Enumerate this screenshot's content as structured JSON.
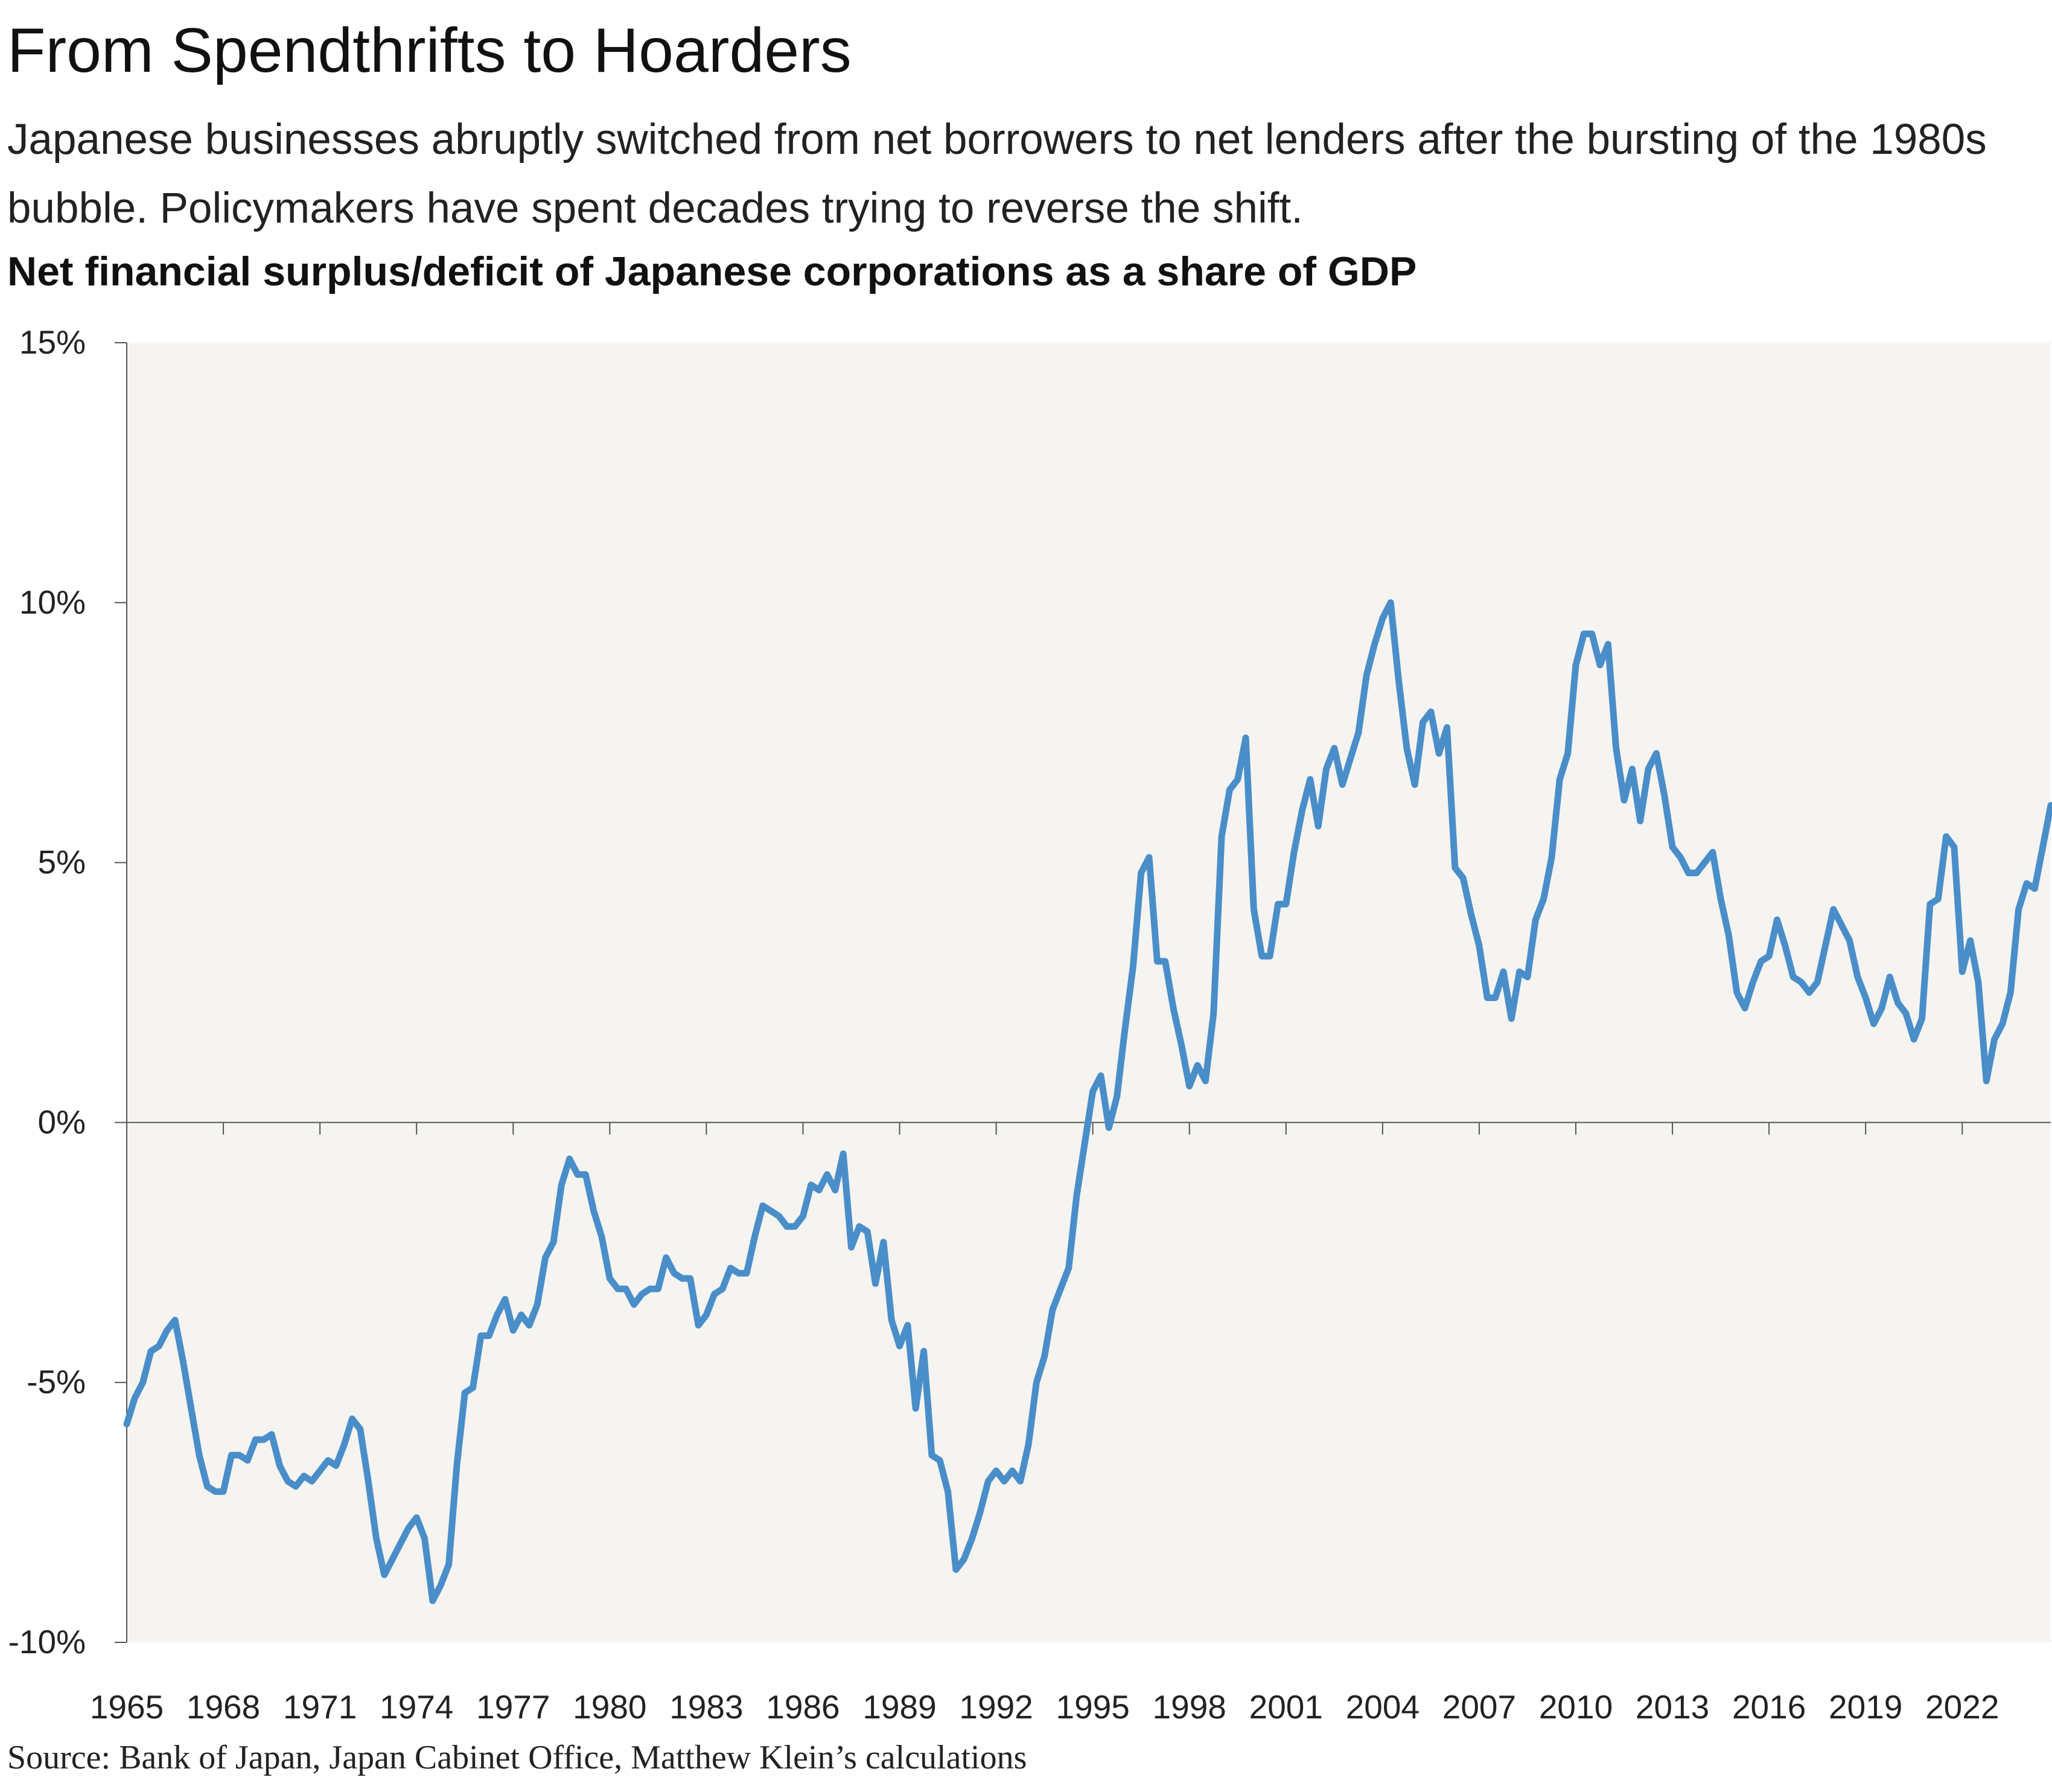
{
  "header": {
    "title": "From Spendthrifts to Hoarders",
    "subtitle": "Japanese businesses abruptly switched from net borrowers to net lenders after the bursting of the 1980s bubble. Policymakers have spent decades trying to reverse the shift."
  },
  "footer": {
    "source": "Source: Bank of Japan, Japan Cabinet Office, Matthew Klein’s calculations"
  },
  "colors": {
    "line": "#4a8ec9",
    "plot_background": "#f5f4f1",
    "axis": "#555555",
    "text": "#222222"
  },
  "chart_data": {
    "type": "line",
    "title": "Net financial surplus/deficit of Japanese corporations as a share of GDP",
    "xlabel": "",
    "ylabel": "",
    "xlim": [
      1965.0,
      2024.75
    ],
    "ylim": [
      -10,
      15
    ],
    "yticks": [
      15,
      10,
      5,
      0,
      -5,
      -10
    ],
    "ytick_labels": [
      "15%",
      "10%",
      "5%",
      "0%",
      "-5%",
      "-10%"
    ],
    "xticks": [
      1965,
      1968,
      1971,
      1974,
      1977,
      1980,
      1983,
      1986,
      1989,
      1992,
      1995,
      1998,
      2001,
      2004,
      2007,
      2010,
      2013,
      2016,
      2019,
      2022
    ],
    "xtick_labels": [
      "1965",
      "1968",
      "1971",
      "1974",
      "1977",
      "1980",
      "1983",
      "1986",
      "1989",
      "1992",
      "1995",
      "1998",
      "2001",
      "2004",
      "2007",
      "2010",
      "2013",
      "2016",
      "2019",
      "2022"
    ],
    "grid": false,
    "legend": "none",
    "series": [
      {
        "x": [
          1965.0,
          1965.25,
          1965.5,
          1965.75,
          1966.0,
          1966.25,
          1966.5,
          1966.75,
          1967.0,
          1967.25,
          1967.5,
          1967.75,
          1968.0,
          1968.25,
          1968.5,
          1968.75,
          1969.0,
          1969.25,
          1969.5,
          1969.75,
          1970.0,
          1970.25,
          1970.5,
          1970.75,
          1971.0,
          1971.25,
          1971.5,
          1971.75,
          1972.0,
          1972.25,
          1972.5,
          1972.75,
          1973.0,
          1973.25,
          1973.5,
          1973.75,
          1974.0,
          1974.25,
          1974.5,
          1974.75,
          1975.0,
          1975.25,
          1975.5,
          1975.75,
          1976.0,
          1976.25,
          1976.5,
          1976.75,
          1977.0,
          1977.25,
          1977.5,
          1977.75,
          1978.0,
          1978.25,
          1978.5,
          1978.75,
          1979.0,
          1979.25,
          1979.5,
          1979.75,
          1980.0,
          1980.25,
          1980.5,
          1980.75,
          1981.0,
          1981.25,
          1981.5,
          1981.75,
          1982.0,
          1982.25,
          1982.5,
          1982.75,
          1983.0,
          1983.25,
          1983.5,
          1983.75,
          1984.0,
          1984.25,
          1984.5,
          1984.75,
          1985.0,
          1985.25,
          1985.5,
          1985.75,
          1986.0,
          1986.25,
          1986.5,
          1986.75,
          1987.0,
          1987.25,
          1987.5,
          1987.75,
          1988.0,
          1988.25,
          1988.5,
          1988.75,
          1989.0,
          1989.25,
          1989.5,
          1989.75,
          1990.0,
          1990.25,
          1990.5,
          1990.75,
          1991.0,
          1991.25,
          1991.5,
          1991.75,
          1992.0,
          1992.25,
          1992.5,
          1992.75,
          1993.0,
          1993.25,
          1993.5,
          1993.75,
          1994.0,
          1994.25,
          1994.5,
          1994.75,
          1995.0,
          1995.25,
          1995.5,
          1995.75,
          1996.0,
          1996.25,
          1996.5,
          1996.75,
          1997.0,
          1997.25,
          1997.5,
          1997.75,
          1998.0,
          1998.25,
          1998.5,
          1998.75,
          1999.0,
          1999.25,
          1999.5,
          1999.75,
          2000.0,
          2000.25,
          2000.5,
          2000.75,
          2001.0,
          2001.25,
          2001.5,
          2001.75,
          2002.0,
          2002.25,
          2002.5,
          2002.75,
          2003.0,
          2003.25,
          2003.5,
          2003.75,
          2004.0,
          2004.25,
          2004.5,
          2004.75,
          2005.0,
          2005.25,
          2005.5,
          2005.75,
          2006.0,
          2006.25,
          2006.5,
          2006.75,
          2007.0,
          2007.25,
          2007.5,
          2007.75,
          2008.0,
          2008.25,
          2008.5,
          2008.75,
          2009.0,
          2009.25,
          2009.5,
          2009.75,
          2010.0,
          2010.25,
          2010.5,
          2010.75,
          2011.0,
          2011.25,
          2011.5,
          2011.75,
          2012.0,
          2012.25,
          2012.5,
          2012.75,
          2013.0,
          2013.25,
          2013.5,
          2013.75,
          2014.0,
          2014.25,
          2014.5,
          2014.75,
          2015.0,
          2015.25,
          2015.5,
          2015.75,
          2016.0,
          2016.25,
          2016.5,
          2016.75,
          2017.0,
          2017.25,
          2017.5,
          2017.75,
          2018.0,
          2018.25,
          2018.5,
          2018.75,
          2019.0,
          2019.25,
          2019.5,
          2019.75,
          2020.0,
          2020.25,
          2020.5,
          2020.75,
          2021.0,
          2021.25,
          2021.5,
          2021.75,
          2022.0,
          2022.25,
          2022.5,
          2022.75,
          2023.0,
          2023.25,
          2023.5,
          2023.75,
          2024.0,
          2024.25,
          2024.5,
          2024.75
        ],
        "values": [
          -5.8,
          -5.3,
          -5.0,
          -4.4,
          -4.3,
          -4.0,
          -3.8,
          -4.6,
          -5.5,
          -6.4,
          -7.0,
          -7.1,
          -7.1,
          -6.4,
          -6.4,
          -6.5,
          -6.1,
          -6.1,
          -6.0,
          -6.6,
          -6.9,
          -7.0,
          -6.8,
          -6.9,
          -6.7,
          -6.5,
          -6.6,
          -6.2,
          -5.7,
          -5.9,
          -6.9,
          -8.0,
          -8.7,
          -8.4,
          -8.1,
          -7.8,
          -7.6,
          -8.0,
          -9.2,
          -8.9,
          -8.5,
          -6.6,
          -5.2,
          -5.1,
          -4.1,
          -4.1,
          -3.7,
          -3.4,
          -4.0,
          -3.7,
          -3.9,
          -3.5,
          -2.6,
          -2.3,
          -1.2,
          -0.7,
          -1.0,
          -1.0,
          -1.7,
          -2.2,
          -3.0,
          -3.2,
          -3.2,
          -3.5,
          -3.3,
          -3.2,
          -3.2,
          -2.6,
          -2.9,
          -3.0,
          -3.0,
          -3.9,
          -3.7,
          -3.3,
          -3.2,
          -2.8,
          -2.9,
          -2.9,
          -2.2,
          -1.6,
          -1.7,
          -1.8,
          -2.0,
          -2.0,
          -1.8,
          -1.2,
          -1.3,
          -1.0,
          -1.3,
          -0.6,
          -2.4,
          -2.0,
          -2.1,
          -3.1,
          -2.3,
          -3.8,
          -4.3,
          -3.9,
          -5.5,
          -4.4,
          -6.4,
          -6.5,
          -7.1,
          -8.6,
          -8.4,
          -8.0,
          -7.5,
          -6.9,
          -6.7,
          -6.9,
          -6.7,
          -6.9,
          -6.2,
          -5.0,
          -4.5,
          -3.6,
          -3.2,
          -2.8,
          -1.4,
          -0.4,
          0.6,
          0.9,
          -0.1,
          0.5,
          1.8,
          3.0,
          4.8,
          5.1,
          3.1,
          3.1,
          2.2,
          1.5,
          0.7,
          1.1,
          0.8,
          2.1,
          5.5,
          6.4,
          6.6,
          7.4,
          4.1,
          3.2,
          3.2,
          4.2,
          4.2,
          5.2,
          6.0,
          6.6,
          5.7,
          6.8,
          7.2,
          6.5,
          7.0,
          7.5,
          8.6,
          9.2,
          9.7,
          10.0,
          8.5,
          7.2,
          6.5,
          7.7,
          7.9,
          7.1,
          7.6,
          4.9,
          4.7,
          4.0,
          3.4,
          2.4,
          2.4,
          2.9,
          2.0,
          2.9,
          2.8,
          3.9,
          4.3,
          5.1,
          6.6,
          7.1,
          8.8,
          9.4,
          9.4,
          8.8,
          9.2,
          7.2,
          6.2,
          6.8,
          5.8,
          6.8,
          7.1,
          6.3,
          5.3,
          5.1,
          4.8,
          4.8,
          5.0,
          5.2,
          4.3,
          3.6,
          2.5,
          2.2,
          2.7,
          3.1,
          3.2,
          3.9,
          3.4,
          2.8,
          2.7,
          2.5,
          2.7,
          3.4,
          4.1,
          3.8,
          3.5,
          2.8,
          2.4,
          1.9,
          2.2,
          2.8,
          2.3,
          2.1,
          1.6,
          2.0,
          4.2,
          4.3,
          5.5,
          5.3,
          2.9,
          3.5,
          2.7,
          0.8,
          1.6,
          1.9,
          2.5,
          4.1,
          4.6,
          4.5,
          5.3,
          6.1
        ]
      }
    ]
  }
}
